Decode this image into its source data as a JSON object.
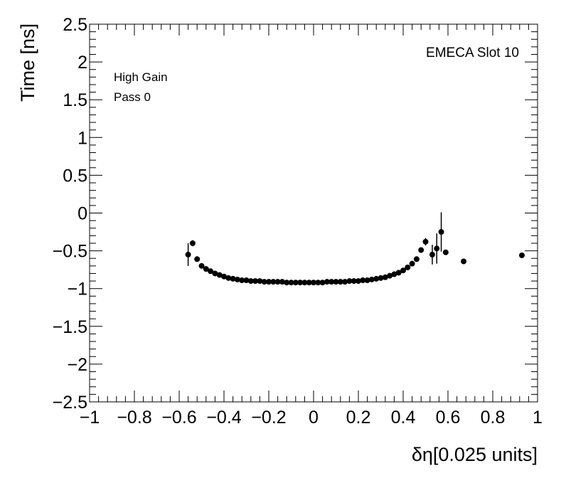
{
  "chart_data": {
    "type": "scatter",
    "xlabel": "δη[0.025 units]",
    "ylabel": "Time [ns]",
    "xlim": [
      -1,
      1
    ],
    "ylim": [
      -2.5,
      2.5
    ],
    "x_ticks": [
      -1,
      -0.8,
      -0.6,
      -0.4,
      -0.2,
      0,
      0.2,
      0.4,
      0.6,
      0.8,
      1
    ],
    "x_tick_labels": [
      "−1",
      "−0.8",
      "−0.6",
      "−0.4",
      "−0.2",
      "0",
      "0.2",
      "0.4",
      "0.6",
      "0.8",
      "1"
    ],
    "y_ticks": [
      -2.5,
      -2,
      -1.5,
      -1,
      -0.5,
      0,
      0.5,
      1,
      1.5,
      2,
      2.5
    ],
    "y_tick_labels": [
      "−2.5",
      "−2",
      "−1.5",
      "−1",
      "−0.5",
      "0",
      "0.5",
      "1",
      "1.5",
      "2",
      "2.5"
    ],
    "annotations": {
      "top_right": "EMECA Slot 10",
      "gain": "High Gain",
      "pass": "Pass 0"
    },
    "grid": false,
    "marker_color": "#000000",
    "points": [
      {
        "x": -0.56,
        "y": -0.55,
        "err": 0.15
      },
      {
        "x": -0.54,
        "y": -0.4,
        "err": 0.04
      },
      {
        "x": -0.52,
        "y": -0.61,
        "err": 0.02
      },
      {
        "x": -0.5,
        "y": -0.7,
        "err": 0.02
      },
      {
        "x": -0.48,
        "y": -0.74,
        "err": 0.01
      },
      {
        "x": -0.46,
        "y": -0.77,
        "err": 0.01
      },
      {
        "x": -0.44,
        "y": -0.8,
        "err": 0.01
      },
      {
        "x": -0.42,
        "y": -0.82,
        "err": 0.01
      },
      {
        "x": -0.4,
        "y": -0.84,
        "err": 0.01
      },
      {
        "x": -0.38,
        "y": -0.86,
        "err": 0.01
      },
      {
        "x": -0.36,
        "y": -0.87,
        "err": 0.01
      },
      {
        "x": -0.34,
        "y": -0.88,
        "err": 0.01
      },
      {
        "x": -0.32,
        "y": -0.89,
        "err": 0.01
      },
      {
        "x": -0.3,
        "y": -0.89,
        "err": 0.01
      },
      {
        "x": -0.28,
        "y": -0.9,
        "err": 0.01
      },
      {
        "x": -0.26,
        "y": -0.9,
        "err": 0.01
      },
      {
        "x": -0.24,
        "y": -0.9,
        "err": 0.01
      },
      {
        "x": -0.22,
        "y": -0.91,
        "err": 0.01
      },
      {
        "x": -0.2,
        "y": -0.91,
        "err": 0.01
      },
      {
        "x": -0.18,
        "y": -0.91,
        "err": 0.01
      },
      {
        "x": -0.16,
        "y": -0.91,
        "err": 0.01
      },
      {
        "x": -0.14,
        "y": -0.91,
        "err": 0.01
      },
      {
        "x": -0.12,
        "y": -0.92,
        "err": 0.01
      },
      {
        "x": -0.1,
        "y": -0.92,
        "err": 0.01
      },
      {
        "x": -0.08,
        "y": -0.92,
        "err": 0.01
      },
      {
        "x": -0.06,
        "y": -0.92,
        "err": 0.01
      },
      {
        "x": -0.04,
        "y": -0.92,
        "err": 0.01
      },
      {
        "x": -0.02,
        "y": -0.92,
        "err": 0.01
      },
      {
        "x": 0.0,
        "y": -0.92,
        "err": 0.01
      },
      {
        "x": 0.02,
        "y": -0.92,
        "err": 0.01
      },
      {
        "x": 0.04,
        "y": -0.92,
        "err": 0.01
      },
      {
        "x": 0.06,
        "y": -0.91,
        "err": 0.01
      },
      {
        "x": 0.08,
        "y": -0.91,
        "err": 0.01
      },
      {
        "x": 0.1,
        "y": -0.91,
        "err": 0.01
      },
      {
        "x": 0.12,
        "y": -0.91,
        "err": 0.01
      },
      {
        "x": 0.14,
        "y": -0.91,
        "err": 0.01
      },
      {
        "x": 0.16,
        "y": -0.9,
        "err": 0.01
      },
      {
        "x": 0.18,
        "y": -0.9,
        "err": 0.01
      },
      {
        "x": 0.2,
        "y": -0.9,
        "err": 0.01
      },
      {
        "x": 0.22,
        "y": -0.89,
        "err": 0.01
      },
      {
        "x": 0.24,
        "y": -0.89,
        "err": 0.01
      },
      {
        "x": 0.26,
        "y": -0.88,
        "err": 0.01
      },
      {
        "x": 0.28,
        "y": -0.87,
        "err": 0.01
      },
      {
        "x": 0.3,
        "y": -0.86,
        "err": 0.01
      },
      {
        "x": 0.32,
        "y": -0.85,
        "err": 0.01
      },
      {
        "x": 0.34,
        "y": -0.83,
        "err": 0.01
      },
      {
        "x": 0.36,
        "y": -0.81,
        "err": 0.01
      },
      {
        "x": 0.38,
        "y": -0.79,
        "err": 0.01
      },
      {
        "x": 0.4,
        "y": -0.76,
        "err": 0.01
      },
      {
        "x": 0.42,
        "y": -0.72,
        "err": 0.02
      },
      {
        "x": 0.44,
        "y": -0.67,
        "err": 0.02
      },
      {
        "x": 0.46,
        "y": -0.61,
        "err": 0.02
      },
      {
        "x": 0.48,
        "y": -0.49,
        "err": 0.03
      },
      {
        "x": 0.5,
        "y": -0.38,
        "err": 0.05
      },
      {
        "x": 0.53,
        "y": -0.55,
        "err": 0.13
      },
      {
        "x": 0.55,
        "y": -0.47,
        "err": 0.2
      },
      {
        "x": 0.57,
        "y": -0.25,
        "err": 0.26
      },
      {
        "x": 0.59,
        "y": -0.52,
        "err": 0.03
      },
      {
        "x": 0.67,
        "y": -0.64,
        "err": 0.02
      },
      {
        "x": 0.93,
        "y": -0.56,
        "err": 0.02
      }
    ]
  }
}
